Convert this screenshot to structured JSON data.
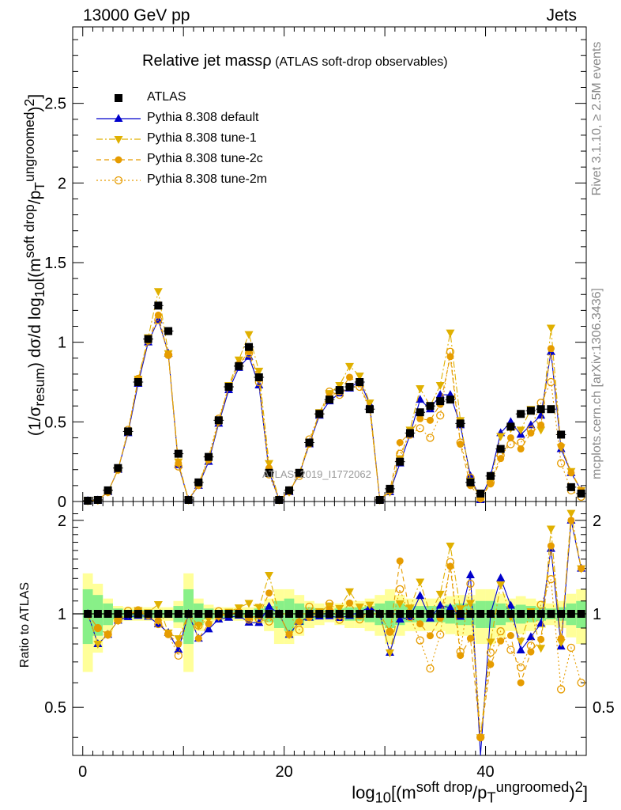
{
  "header": {
    "left": "13000 GeV pp",
    "right": "Jets",
    "title_main": "Relative jet massρ",
    "title_sub": " (ATLAS soft-drop observables)",
    "side_note_1": "Rivet 3.1.10, ≥ 2.5M events",
    "side_note_2": "mcplots.cern.ch [arXiv:1306.3436]",
    "analysis_id": "ATLAS_2019_I1772062"
  },
  "axes": {
    "ylabel_html": "(1/σ<sub>resum</sub>) dσ/d log<sub>10</sub>[(m<sup>soft drop</sup>/p<sub>T</sub><sup>ungroomed</sup>)<sup>2</sup>]",
    "ratio_ylabel": "Ratio to ATLAS",
    "xlabel_html": "log<sub>10</sub>[(m<sup>soft drop</sup>/p<sub>T</sub><sup>ungroomed</sup>)<sup>2</sup>]"
  },
  "legend": [
    {
      "label": "ATLAS",
      "color": "#000000",
      "marker": "square",
      "line": "none"
    },
    {
      "label": "Pythia 8.308 default",
      "color": "#0000cc",
      "marker": "triangle-up",
      "line": "solid"
    },
    {
      "label": "Pythia 8.308 tune-1",
      "color": "#e0b000",
      "marker": "triangle-down",
      "line": "dashdot"
    },
    {
      "label": "Pythia 8.308 tune-2c",
      "color": "#e69c00",
      "marker": "circle",
      "line": "dashed"
    },
    {
      "label": "Pythia 8.308 tune-2m",
      "color": "#e69c00",
      "marker": "open-circle",
      "line": "dotted"
    }
  ],
  "chart_data": {
    "type": "scatter",
    "title": "Relative jet massρ (ATLAS soft-drop observables)",
    "xlabel": "log10[(m^soft drop/pT^ungroomed)^2]",
    "ylabel": "(1/σresum) dσ/d log10[(m^soft drop/pT^ungroomed)^2]",
    "xlim": [
      -1,
      50
    ],
    "ylim": [
      0,
      2.98
    ],
    "xticks": [
      0,
      20,
      40
    ],
    "yticks": [
      0,
      0.5,
      1,
      1.5,
      2,
      2.5
    ],
    "grid": false,
    "legend_position": "top-left",
    "x": [
      0.5,
      1.5,
      2.5,
      3.5,
      4.5,
      5.5,
      6.5,
      7.5,
      8.5,
      9.5,
      10.5,
      11.5,
      12.5,
      13.5,
      14.5,
      15.5,
      16.5,
      17.5,
      18.5,
      19.5,
      20.5,
      21.5,
      22.5,
      23.5,
      24.5,
      25.5,
      26.5,
      27.5,
      28.5,
      29.5,
      30.5,
      31.5,
      32.5,
      33.5,
      34.5,
      35.5,
      36.5,
      37.5,
      38.5,
      39.5,
      40.5,
      41.5,
      42.5,
      43.5,
      44.5,
      45.5,
      46.5,
      47.5,
      48.5,
      49.5
    ],
    "series": [
      {
        "name": "ATLAS",
        "values": [
          0.005,
          0.01,
          0.07,
          0.21,
          0.44,
          0.75,
          1.02,
          1.23,
          1.07,
          0.3,
          0.01,
          0.12,
          0.28,
          0.51,
          0.72,
          0.85,
          0.97,
          0.78,
          0.18,
          0.01,
          0.07,
          0.18,
          0.37,
          0.55,
          0.64,
          0.7,
          0.72,
          0.75,
          0.58,
          0.01,
          0.08,
          0.25,
          0.43,
          0.56,
          0.6,
          0.63,
          0.64,
          0.49,
          0.12,
          0.05,
          0.16,
          0.33,
          0.47,
          0.55,
          0.57,
          0.58,
          0.58,
          0.42,
          0.09,
          0.05
        ]
      },
      {
        "name": "Pythia 8.308 default",
        "values": [
          0.005,
          0.008,
          0.06,
          0.2,
          0.43,
          0.74,
          1.0,
          1.14,
          0.93,
          0.23,
          0.01,
          0.1,
          0.25,
          0.49,
          0.7,
          0.84,
          0.91,
          0.73,
          0.19,
          0.01,
          0.06,
          0.17,
          0.36,
          0.54,
          0.63,
          0.68,
          0.71,
          0.76,
          0.61,
          0.01,
          0.06,
          0.24,
          0.42,
          0.64,
          0.58,
          0.67,
          0.67,
          0.48,
          0.16,
          0.01,
          0.16,
          0.43,
          0.5,
          0.42,
          0.48,
          0.54,
          0.94,
          0.33,
          0.18,
          0.07
        ]
      },
      {
        "name": "Pythia 8.308 tune-1",
        "values": [
          0.005,
          0.008,
          0.06,
          0.2,
          0.44,
          0.77,
          1.03,
          1.32,
          0.93,
          0.25,
          0.01,
          0.11,
          0.27,
          0.5,
          0.73,
          0.89,
          1.05,
          0.82,
          0.24,
          0.01,
          0.06,
          0.18,
          0.37,
          0.56,
          0.68,
          0.73,
          0.85,
          0.79,
          0.62,
          0.01,
          0.06,
          0.27,
          0.45,
          0.71,
          0.6,
          0.73,
          1.06,
          0.51,
          0.13,
          0.02,
          0.13,
          0.41,
          0.46,
          0.45,
          0.58,
          0.45,
          1.09,
          0.34,
          0.19,
          0.07
        ]
      },
      {
        "name": "Pythia 8.308 tune-2c",
        "values": [
          0.005,
          0.009,
          0.06,
          0.2,
          0.44,
          0.76,
          1.01,
          1.17,
          0.92,
          0.24,
          0.01,
          0.1,
          0.26,
          0.5,
          0.72,
          0.86,
          0.94,
          0.77,
          0.21,
          0.01,
          0.06,
          0.17,
          0.36,
          0.55,
          0.66,
          0.69,
          0.78,
          0.74,
          0.58,
          0.01,
          0.07,
          0.37,
          0.43,
          0.52,
          0.51,
          0.61,
          0.91,
          0.36,
          0.1,
          0.02,
          0.11,
          0.27,
          0.4,
          0.33,
          0.43,
          0.48,
          0.96,
          0.35,
          0.18,
          0.07
        ]
      },
      {
        "name": "Pythia 8.308 tune-2m",
        "values": [
          0.005,
          0.009,
          0.06,
          0.2,
          0.45,
          0.77,
          1.01,
          1.14,
          0.92,
          0.22,
          0.01,
          0.11,
          0.28,
          0.52,
          0.72,
          0.86,
          0.93,
          0.75,
          0.17,
          0.01,
          0.07,
          0.16,
          0.39,
          0.55,
          0.69,
          0.67,
          0.72,
          0.72,
          0.58,
          0.01,
          0.07,
          0.3,
          0.42,
          0.46,
          0.4,
          0.54,
          0.94,
          0.37,
          0.15,
          0.02,
          0.12,
          0.29,
          0.36,
          0.37,
          0.45,
          0.62,
          0.75,
          0.24,
          0.07,
          0.03
        ]
      }
    ],
    "ratio": {
      "ylabel": "Ratio to ATLAS",
      "ylim": [
        0.35,
        2.3
      ],
      "yticks": [
        0.5,
        1,
        2
      ],
      "reference": 1,
      "band_inner_halfwidth": [
        0.2,
        0.15,
        0.08,
        0.04,
        0.03,
        0.03,
        0.03,
        0.03,
        0.03,
        0.06,
        0.2,
        0.08,
        0.04,
        0.03,
        0.03,
        0.03,
        0.03,
        0.04,
        0.06,
        0.1,
        0.12,
        0.08,
        0.05,
        0.04,
        0.03,
        0.04,
        0.05,
        0.05,
        0.06,
        0.08,
        0.1,
        0.08,
        0.06,
        0.06,
        0.06,
        0.06,
        0.07,
        0.08,
        0.08,
        0.1,
        0.1,
        0.08,
        0.06,
        0.07,
        0.06,
        0.05,
        0.04,
        0.05,
        0.08,
        0.1
      ],
      "band_outer_halfwidth": [
        0.35,
        0.25,
        0.12,
        0.06,
        0.05,
        0.05,
        0.05,
        0.05,
        0.05,
        0.1,
        0.35,
        0.12,
        0.07,
        0.05,
        0.05,
        0.05,
        0.05,
        0.07,
        0.12,
        0.2,
        0.2,
        0.15,
        0.1,
        0.08,
        0.06,
        0.08,
        0.1,
        0.1,
        0.12,
        0.15,
        0.2,
        0.15,
        0.12,
        0.12,
        0.12,
        0.12,
        0.14,
        0.15,
        0.15,
        0.2,
        0.2,
        0.16,
        0.12,
        0.14,
        0.12,
        0.1,
        0.08,
        0.1,
        0.16,
        0.2
      ]
    }
  }
}
